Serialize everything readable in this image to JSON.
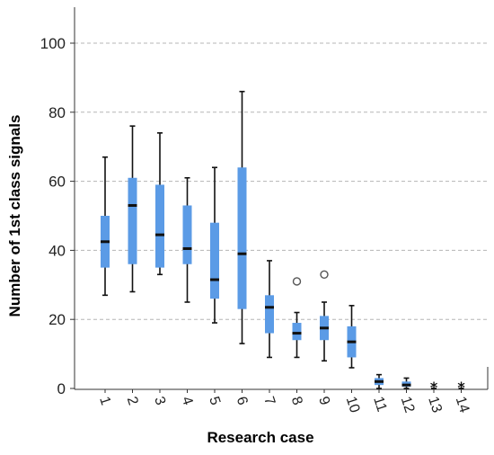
{
  "chart_data": {
    "type": "box",
    "xlabel": "Research case",
    "ylabel": "Number of 1st class signals",
    "ylim": [
      0,
      110
    ],
    "yticks": [
      0,
      20,
      40,
      60,
      80,
      100
    ],
    "grid": "horizontal dashed",
    "box_color": "#5b9be6",
    "categories": [
      "1",
      "2",
      "3",
      "4",
      "5",
      "6",
      "7",
      "8",
      "9",
      "10",
      "11",
      "12",
      "13",
      "14"
    ],
    "boxes": [
      {
        "case": "1",
        "min": 27,
        "q1": 35,
        "median": 42.5,
        "q3": 50,
        "max": 67,
        "outliers": [],
        "extremes": []
      },
      {
        "case": "2",
        "min": 28,
        "q1": 36,
        "median": 53,
        "q3": 61,
        "max": 76,
        "outliers": [],
        "extremes": []
      },
      {
        "case": "3",
        "min": 33,
        "q1": 35,
        "median": 44.5,
        "q3": 59,
        "max": 74,
        "outliers": [],
        "extremes": []
      },
      {
        "case": "4",
        "min": 25,
        "q1": 36,
        "median": 40.5,
        "q3": 53,
        "max": 61,
        "outliers": [],
        "extremes": []
      },
      {
        "case": "5",
        "min": 19,
        "q1": 26,
        "median": 31.5,
        "q3": 48,
        "max": 64,
        "outliers": [],
        "extremes": []
      },
      {
        "case": "6",
        "min": 13,
        "q1": 23,
        "median": 39,
        "q3": 64,
        "max": 86,
        "outliers": [],
        "extremes": []
      },
      {
        "case": "7",
        "min": 9,
        "q1": 16,
        "median": 23.5,
        "q3": 27,
        "max": 37,
        "outliers": [],
        "extremes": []
      },
      {
        "case": "8",
        "min": 9,
        "q1": 14,
        "median": 16,
        "q3": 19,
        "max": 22,
        "outliers": [
          31
        ],
        "extremes": []
      },
      {
        "case": "9",
        "min": 8,
        "q1": 14,
        "median": 17.5,
        "q3": 21,
        "max": 25,
        "outliers": [
          33
        ],
        "extremes": []
      },
      {
        "case": "10",
        "min": 6,
        "q1": 9,
        "median": 13.5,
        "q3": 18,
        "max": 24,
        "outliers": [],
        "extremes": []
      },
      {
        "case": "11",
        "min": 0,
        "q1": 1,
        "median": 2,
        "q3": 3,
        "max": 4,
        "outliers": [],
        "extremes": []
      },
      {
        "case": "12",
        "min": 0,
        "q1": 0.5,
        "median": 1,
        "q3": 2,
        "max": 3,
        "outliers": [],
        "extremes": []
      },
      {
        "case": "13",
        "min": 0,
        "q1": 0,
        "median": 0,
        "q3": 0,
        "max": 0,
        "outliers": [],
        "extremes": [
          1
        ]
      },
      {
        "case": "14",
        "min": 0,
        "q1": 0,
        "median": 0,
        "q3": 0,
        "max": 0,
        "outliers": [],
        "extremes": [
          1
        ]
      }
    ]
  }
}
